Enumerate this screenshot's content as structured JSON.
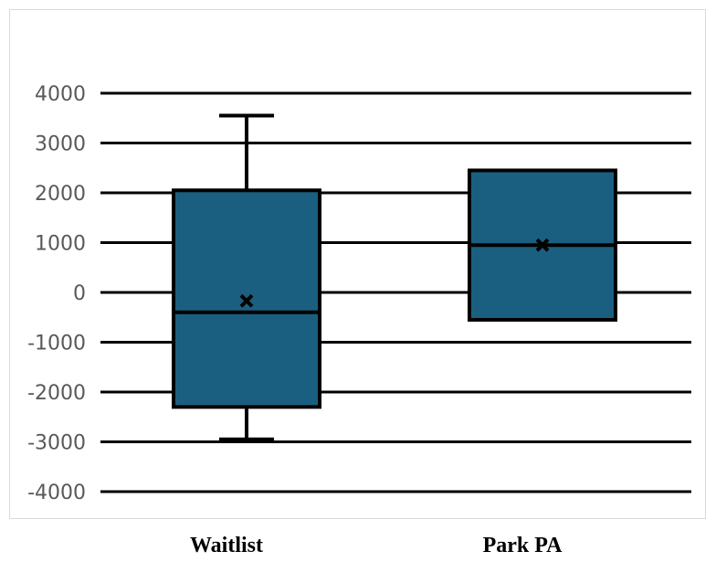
{
  "chart_data": {
    "type": "box",
    "title": "",
    "xlabel": "",
    "ylabel": "",
    "ylim": [
      -4000,
      4000
    ],
    "yticks": [
      4000,
      3000,
      2000,
      1000,
      0,
      -1000,
      -2000,
      -3000,
      -4000
    ],
    "ytick_labels": [
      "4000",
      "3000",
      "2000",
      "1000",
      "0",
      "-1000",
      "-2000",
      "-3000",
      "-4000"
    ],
    "grid": true,
    "legend": "none",
    "categories": [
      "Waitlist",
      "Park PA"
    ],
    "boxes": [
      {
        "category": "Waitlist",
        "min": -2950,
        "q1": -2300,
        "median": -400,
        "q3": 2050,
        "max": 3550,
        "mean": -170
      },
      {
        "category": "Park PA",
        "min": -550,
        "q1": -550,
        "median": 950,
        "q3": 2450,
        "max": 2450,
        "mean": 950
      }
    ],
    "colors": {
      "box_fill": "#1b5f80",
      "stroke": "#000000",
      "grid": "#000000",
      "tick_text": "#595959"
    }
  }
}
